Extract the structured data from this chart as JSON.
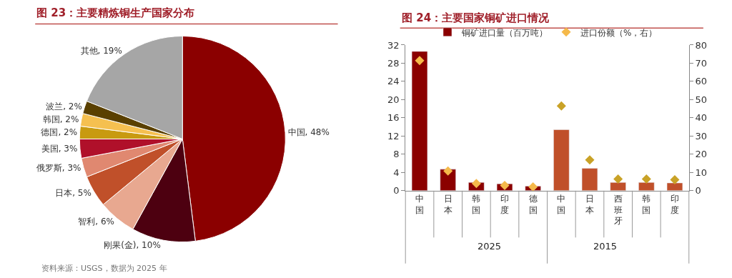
{
  "chart_data": [
    {
      "type": "pie",
      "title": "图 23：主要精炼铜生产国家分布",
      "categories": [
        "中国",
        "刚果(金)",
        "智利",
        "日本",
        "俄罗斯",
        "美国",
        "德国",
        "韩国",
        "波兰",
        "其他"
      ],
      "values": [
        48,
        10,
        6,
        5,
        3,
        3,
        2,
        2,
        2,
        19
      ],
      "value_labels": [
        "48%",
        "10%",
        "6%",
        "5%",
        "3%",
        "3%",
        "2%",
        "2%",
        "2%",
        "19%"
      ],
      "colors": [
        "#8b0000",
        "#4d0010",
        "#e8a890",
        "#c0502a",
        "#e08870",
        "#b0102a",
        "#c89a10",
        "#f5c050",
        "#5a4000",
        "#a6a6a6"
      ],
      "legend": false,
      "annotations": [
        "资料来源：USGS，数据为 2025 年"
      ]
    },
    {
      "type": "bar",
      "title": "图 24：主要国家铜矿进口情况",
      "categories": [
        "中国",
        "日本",
        "韩国",
        "印度",
        "德国",
        "中国",
        "日本",
        "西班牙",
        "韩国",
        "印度"
      ],
      "series": [
        {
          "name": "铜矿进口量（百万吨）",
          "colors": [
            "#8b0000",
            "#8b0000",
            "#8b0000",
            "#8b0000",
            "#8b0000",
            "#c0502a",
            "#c0502a",
            "#c0502a",
            "#c0502a",
            "#c0502a"
          ],
          "values": [
            30.6,
            4.7,
            1.8,
            1.5,
            1.0,
            13.4,
            4.9,
            1.8,
            1.8,
            1.7
          ]
        },
        {
          "name": "进口份额（%，右）",
          "type": "scatter",
          "axis": "y2",
          "marker": "diamond",
          "colors": [
            "#f5b94a",
            "#f5b94a",
            "#f5b94a",
            "#f5b94a",
            "#f5b94a",
            "#c9a227",
            "#c9a227",
            "#c9a227",
            "#c9a227",
            "#c9a227"
          ],
          "values": [
            71.4,
            10.8,
            3.9,
            2.9,
            2.1,
            46.5,
            16.9,
            6.4,
            6.4,
            6.0
          ]
        }
      ],
      "ylim": [
        0,
        32
      ],
      "yticks": [
        0,
        4,
        8,
        12,
        16,
        20,
        24,
        28,
        32
      ],
      "y2lim": [
        0,
        80
      ],
      "y2ticks": [
        0,
        10,
        20,
        30,
        40,
        50,
        60,
        70,
        80
      ],
      "legend": "top",
      "annotations": [
        "2025",
        "2015"
      ]
    }
  ]
}
